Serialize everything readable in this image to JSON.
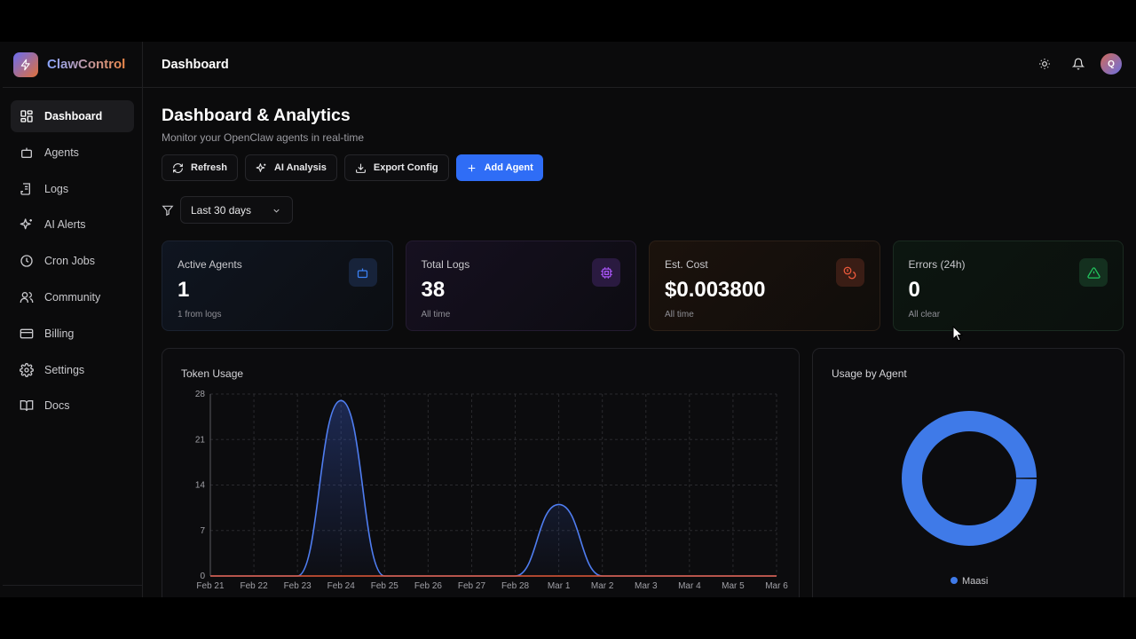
{
  "brand": {
    "name": "ClawControl"
  },
  "header": {
    "title": "Dashboard",
    "avatar_initial": "Q"
  },
  "sidebar": {
    "items": [
      {
        "label": "Dashboard",
        "icon": "grid-icon",
        "active": true
      },
      {
        "label": "Agents",
        "icon": "bot-icon",
        "active": false
      },
      {
        "label": "Logs",
        "icon": "logs-icon",
        "active": false
      },
      {
        "label": "AI Alerts",
        "icon": "sparkles-icon",
        "active": false
      },
      {
        "label": "Cron Jobs",
        "icon": "clock-icon",
        "active": false
      },
      {
        "label": "Community",
        "icon": "users-icon",
        "active": false
      },
      {
        "label": "Billing",
        "icon": "card-icon",
        "active": false
      },
      {
        "label": "Settings",
        "icon": "gear-icon",
        "active": false
      },
      {
        "label": "Docs",
        "icon": "book-icon",
        "active": false
      }
    ]
  },
  "main": {
    "title": "Dashboard & Analytics",
    "subtitle": "Monitor your OpenClaw agents in real-time",
    "buttons": {
      "refresh": "Refresh",
      "ai_analysis": "AI Analysis",
      "export_config": "Export Config",
      "add_agent": "Add Agent"
    },
    "filter": {
      "selected": "Last 30 days"
    },
    "stats": [
      {
        "label": "Active Agents",
        "value": "1",
        "note": "1 from logs",
        "icon": "bot-icon",
        "color": "#3b82f6"
      },
      {
        "label": "Total Logs",
        "value": "38",
        "note": "All time",
        "icon": "cpu-icon",
        "color": "#a855f7"
      },
      {
        "label": "Est. Cost",
        "value": "$0.003800",
        "note": "All time",
        "icon": "coins-icon",
        "color": "#ef5a3c"
      },
      {
        "label": "Errors (24h)",
        "value": "0",
        "note": "All clear",
        "icon": "warning-icon",
        "color": "#22c55e"
      }
    ],
    "token_panel": {
      "title": "Token Usage"
    },
    "agent_panel": {
      "title": "Usage by Agent"
    }
  },
  "chart_data": [
    {
      "type": "area",
      "title": "Token Usage",
      "x": [
        "Feb 21",
        "Feb 22",
        "Feb 23",
        "Feb 24",
        "Feb 25",
        "Feb 26",
        "Feb 27",
        "Feb 28",
        "Mar 1",
        "Mar 2",
        "Mar 3",
        "Mar 4",
        "Mar 5",
        "Mar 6"
      ],
      "series": [
        {
          "color": "#4f7df0",
          "values": [
            0,
            0,
            0,
            27,
            0,
            0,
            0,
            0,
            11,
            0,
            0,
            0,
            0,
            0
          ]
        },
        {
          "color": "#e45a3a",
          "values": [
            0,
            0,
            0,
            0,
            0,
            0,
            0,
            0,
            0,
            0,
            0,
            0,
            0,
            0
          ]
        }
      ],
      "yticks": [
        0,
        7,
        14,
        21,
        28
      ],
      "ylim": [
        0,
        28
      ],
      "grid": true
    },
    {
      "type": "pie",
      "title": "Usage by Agent",
      "labels": [
        "Maasi"
      ],
      "values": [
        100
      ],
      "colors": [
        "#3f7ae8"
      ],
      "legend": "bottom"
    }
  ],
  "colors": {
    "accent": "#2f6df6",
    "background": "#0b0b0c"
  }
}
